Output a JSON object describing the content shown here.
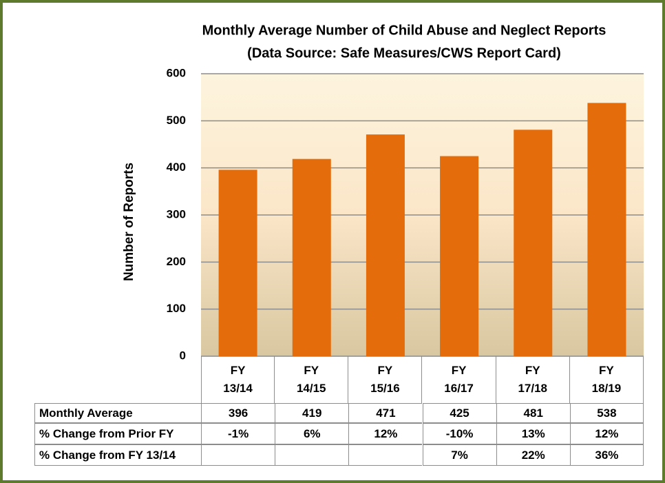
{
  "chart_data": {
    "type": "bar",
    "title": "Monthly Average Number of Child Abuse and Neglect Reports",
    "subtitle": "(Data Source: Safe Measures/CWS Report Card)",
    "y_label": "Number of Reports",
    "categories": [
      "FY 13/14",
      "FY 14/15",
      "FY 15/16",
      "FY 16/17",
      "FY 17/18",
      "FY 18/19"
    ],
    "values": [
      396,
      419,
      471,
      425,
      481,
      538
    ],
    "color": "#e46c0a",
    "ylim": [
      0,
      600
    ],
    "yticks": [
      0,
      100,
      200,
      300,
      400,
      500,
      600
    ],
    "grid": true,
    "data_table": {
      "value_row_label": "Monthly Average",
      "rows": [
        {
          "label": "% Change from Prior FY",
          "cells": [
            "-1%",
            "6%",
            "12%",
            "-10%",
            "13%",
            "12%"
          ]
        },
        {
          "label": "% Change from FY 13/14",
          "cells": [
            null,
            null,
            null,
            "7%",
            "22%",
            "36%"
          ]
        }
      ]
    }
  }
}
